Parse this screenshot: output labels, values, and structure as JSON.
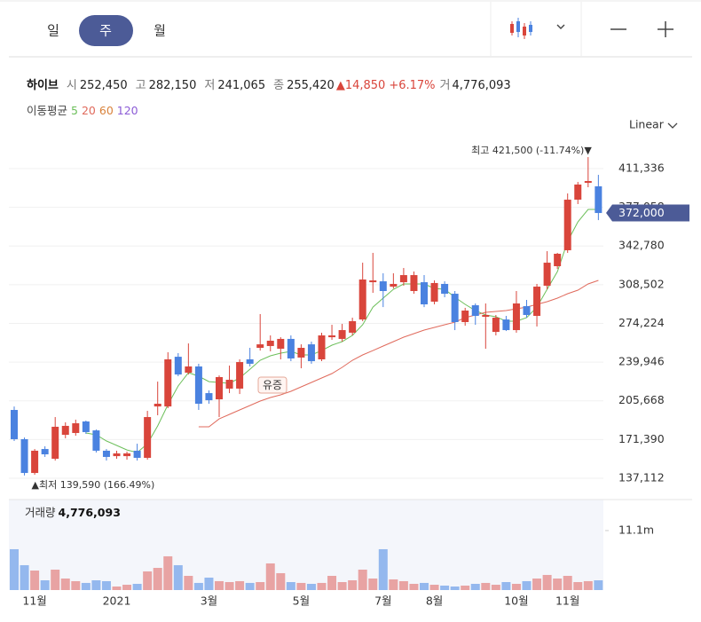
{
  "tabs": [
    "일",
    "주",
    "월"
  ],
  "info": {
    "name": "하이브",
    "items": [
      {
        "label": "시",
        "value": "252,450"
      },
      {
        "label": "고",
        "value": "282,150"
      },
      {
        "label": "저",
        "value": "241,065"
      },
      {
        "label": "종",
        "value": "255,420"
      }
    ],
    "change": "▲14,850",
    "change_pct": "+6.17%",
    "volume_label": "거",
    "volume": "4,776,093"
  },
  "ma_title": "이동평균",
  "scale_mode": "Linear",
  "chart_data": {
    "type": "candlestick",
    "up_color": "#d9453b",
    "down_color": "#4a82e0",
    "categories": [
      null,
      null,
      "11월",
      null,
      null,
      null,
      null,
      null,
      null,
      null,
      "2021",
      null,
      null,
      null,
      null,
      null,
      null,
      null,
      null,
      "3월",
      null,
      null,
      null,
      null,
      null,
      null,
      null,
      null,
      "5월",
      null,
      null,
      null,
      null,
      null,
      null,
      null,
      "7월",
      null,
      null,
      null,
      null,
      "8월",
      null,
      null,
      null,
      null,
      null,
      null,
      null,
      "10월",
      null,
      null,
      null,
      null,
      "11월",
      null,
      null,
      null
    ],
    "open": [
      197600,
      171700,
      141800,
      163000,
      154400,
      175600,
      177200,
      187400,
      179500,
      161500,
      156700,
      156700,
      161500,
      155200,
      200700,
      200700,
      244700,
      230600,
      236100,
      212500,
      207000,
      216500,
      216500,
      242400,
      252600,
      254200,
      251800,
      260500,
      244000,
      255700,
      242400,
      262000,
      260500,
      266000,
      277700,
      310700,
      311500,
      306800,
      310700,
      302900,
      310700,
      293500,
      309200,
      300500,
      275400,
      290300,
      280100,
      266700,
      277700,
      268300,
      289500,
      280900,
      307600,
      324900,
      339000,
      383800,
      398700,
      395600
    ],
    "high": [
      200700,
      173200,
      163000,
      165400,
      191300,
      186600,
      189000,
      188200,
      180300,
      163000,
      161500,
      160700,
      167700,
      196800,
      222700,
      248700,
      247900,
      256500,
      238500,
      214900,
      228200,
      236900,
      242400,
      252600,
      282500,
      263600,
      262000,
      263600,
      255700,
      258100,
      266000,
      273000,
      273800,
      279300,
      328000,
      336700,
      318600,
      318600,
      323300,
      320200,
      317000,
      312300,
      311500,
      302900,
      288000,
      291900,
      291900,
      281700,
      280900,
      302900,
      295000,
      309200,
      338200,
      336700,
      389300,
      399500,
      421500,
      405800
    ],
    "low": [
      170100,
      139590,
      140200,
      156000,
      152800,
      172500,
      174800,
      176400,
      159900,
      152800,
      154400,
      153600,
      152800,
      153600,
      192900,
      199200,
      227500,
      229000,
      197600,
      203100,
      191300,
      212500,
      211700,
      236100,
      250200,
      249500,
      242400,
      240800,
      234500,
      238500,
      240800,
      259700,
      258100,
      263600,
      276200,
      301300,
      288700,
      305200,
      307600,
      300500,
      288700,
      291100,
      297400,
      268300,
      272200,
      273000,
      251800,
      263600,
      267500,
      266000,
      279300,
      271500,
      304500,
      322500,
      336700,
      379900,
      394800,
      365700
    ],
    "close": [
      171700,
      141800,
      161500,
      158300,
      182700,
      183500,
      185800,
      178000,
      161500,
      156000,
      159100,
      159100,
      155200,
      191300,
      203100,
      242400,
      229000,
      236100,
      203100,
      206200,
      226700,
      224300,
      240000,
      238500,
      255700,
      258900,
      260500,
      243200,
      252600,
      240800,
      263600,
      263600,
      268300,
      276200,
      313100,
      312300,
      302900,
      309200,
      317000,
      317000,
      291100,
      310000,
      300500,
      275400,
      285600,
      280900,
      281700,
      279300,
      268300,
      291900,
      281700,
      306800,
      328000,
      335900,
      383800,
      397200,
      400300,
      372000
    ],
    "moving_averages": [
      {
        "name": "5",
        "color": "#6cbf5a",
        "values": [
          null,
          null,
          null,
          null,
          null,
          null,
          null,
          177200,
          175600,
          170100,
          166200,
          162200,
          159900,
          167700,
          183500,
          202300,
          218800,
          230600,
          227500,
          222700,
          222000,
          221200,
          225900,
          233700,
          241600,
          245500,
          247900,
          249500,
          246300,
          246300,
          250200,
          255000,
          258100,
          263600,
          273000,
          288700,
          296600,
          304500,
          309200,
          309200,
          309200,
          305200,
          304500,
          297400,
          291100,
          285600,
          281700,
          280100,
          276200,
          276200,
          279300,
          288700,
          304500,
          320200,
          346900,
          364200,
          375200,
          375200
        ]
      },
      {
        "name": "20",
        "color": "#e06a5c",
        "values": [
          null,
          null,
          null,
          null,
          null,
          null,
          null,
          null,
          null,
          null,
          null,
          null,
          null,
          null,
          null,
          null,
          null,
          null,
          182700,
          182700,
          189700,
          193700,
          197600,
          201500,
          205500,
          208600,
          211000,
          214100,
          218000,
          222000,
          225900,
          229800,
          235300,
          241600,
          246300,
          250200,
          254200,
          258100,
          262000,
          265200,
          268300,
          270700,
          273000,
          275400,
          279300,
          281700,
          284000,
          284800,
          285600,
          287200,
          288700,
          291100,
          293500,
          296600,
          300500,
          303700,
          309200,
          312300
        ]
      },
      {
        "name": "60",
        "color": "#d9823b"
      },
      {
        "name": "120",
        "color": "#8c5cd6"
      }
    ],
    "ylim": [
      124540,
      442750
    ],
    "yticks": [
      {
        "value": 137112,
        "label": "137,112"
      },
      {
        "value": 171390,
        "label": "171,390"
      },
      {
        "value": 205668,
        "label": "205,668"
      },
      {
        "value": 239946,
        "label": "239,946"
      },
      {
        "value": 274224,
        "label": "274,224"
      },
      {
        "value": 308502,
        "label": "308,502"
      },
      {
        "value": 342780,
        "label": "342,780"
      },
      {
        "value": 377058,
        "label": "377,058"
      },
      {
        "value": 411336,
        "label": "411,336"
      }
    ],
    "grid": true,
    "last_price_label": "372,000",
    "high_annotation": "최고 421,500 (-11.74%)▼",
    "low_annotation": "▲최저 139,590 (166.49%)",
    "event_annotation": "유증",
    "volume_title": "거래량",
    "volume_value_label": "4,776,093",
    "volume_up_color": "#e8a3a3",
    "volume_down_color": "#94b8ee",
    "volume": [
      7620000,
      4640000,
      3640000,
      1820000,
      3810000,
      2150000,
      1660000,
      1330000,
      1820000,
      1660000,
      660000,
      990000,
      1160000,
      3480000,
      4140000,
      6300000,
      4640000,
      2650000,
      1330000,
      2320000,
      1660000,
      1490000,
      1660000,
      1330000,
      1490000,
      4970000,
      3150000,
      1490000,
      1330000,
      1160000,
      1330000,
      2650000,
      1490000,
      1820000,
      3810000,
      2150000,
      7620000,
      1990000,
      1660000,
      1160000,
      1330000,
      990000,
      830000,
      660000,
      830000,
      1160000,
      1330000,
      990000,
      1490000,
      1160000,
      1660000,
      2150000,
      2820000,
      2150000,
      2650000,
      1490000,
      1660000,
      1820000
    ],
    "volume_ylim": [
      0,
      14900000
    ],
    "volume_yticks": [
      {
        "value": 11100000,
        "label": "11.1m"
      }
    ]
  }
}
